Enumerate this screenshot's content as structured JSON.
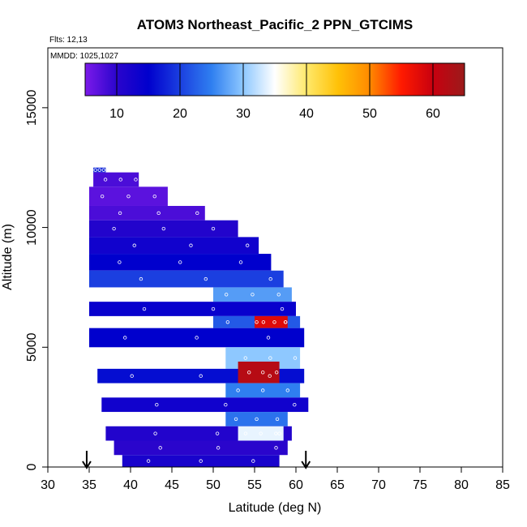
{
  "chart_data": {
    "type": "heatmap",
    "title": "ATOM3 Northeast_Pacific_2 PPN_GTCIMS",
    "flights_label": "Flts: 12,13",
    "dates_label": "MMDD: 1025,1027",
    "xlabel": "Latitude (deg N)",
    "ylabel": "Altitude (m)",
    "xlim": [
      30,
      85
    ],
    "ylim": [
      0,
      17500
    ],
    "xticks": [
      "30",
      "35",
      "40",
      "45",
      "50",
      "55",
      "60",
      "65",
      "70",
      "75",
      "80",
      "85"
    ],
    "yticks": [
      "0",
      "5000",
      "10000",
      "15000"
    ],
    "colorbar": {
      "range": [
        5,
        65
      ],
      "ticks": [
        "10",
        "20",
        "30",
        "40",
        "50",
        "60"
      ],
      "colors": [
        "#7c1aea",
        "#2a05cc",
        "#0000cd",
        "#1b3fe0",
        "#2f7ff0",
        "#8ec8ff",
        "#ffffff",
        "#ffe96b",
        "#ffc107",
        "#ff8a00",
        "#ff1a00",
        "#c8000f",
        "#9b1b1b"
      ]
    },
    "markers_latitude": [
      34.7,
      61.2
    ],
    "cells": [
      {
        "lat": [
          35.5,
          37.0
        ],
        "alt": [
          12300,
          12500
        ],
        "value": 18
      },
      {
        "lat": [
          35.5,
          41.0
        ],
        "alt": [
          11700,
          12300
        ],
        "value": 8
      },
      {
        "lat": [
          35.0,
          44.5
        ],
        "alt": [
          10900,
          11700
        ],
        "value": 7
      },
      {
        "lat": [
          35.0,
          49.0
        ],
        "alt": [
          10300,
          10900
        ],
        "value": 8
      },
      {
        "lat": [
          35.0,
          53.0
        ],
        "alt": [
          9600,
          10300
        ],
        "value": 11
      },
      {
        "lat": [
          35.0,
          55.5
        ],
        "alt": [
          8900,
          9600
        ],
        "value": 13
      },
      {
        "lat": [
          35.0,
          57.0
        ],
        "alt": [
          8200,
          8900
        ],
        "value": 15
      },
      {
        "lat": [
          35.0,
          58.5
        ],
        "alt": [
          7500,
          8200
        ],
        "value": 20
      },
      {
        "lat": [
          50.0,
          59.5
        ],
        "alt": [
          6900,
          7500
        ],
        "value": 27
      },
      {
        "lat": [
          35.0,
          60.0
        ],
        "alt": [
          6300,
          6900
        ],
        "value": 14
      },
      {
        "lat": [
          50.0,
          60.5
        ],
        "alt": [
          5800,
          6300
        ],
        "value": 22
      },
      {
        "lat": [
          55.0,
          59.0
        ],
        "alt": [
          5800,
          6300
        ],
        "value": 58
      },
      {
        "lat": [
          35.0,
          61.0
        ],
        "alt": [
          5000,
          5800
        ],
        "value": 15
      },
      {
        "lat": [
          51.5,
          60.5
        ],
        "alt": [
          4100,
          5000
        ],
        "value": 30
      },
      {
        "lat": [
          36.0,
          61.0
        ],
        "alt": [
          3500,
          4100
        ],
        "value": 16
      },
      {
        "lat": [
          53.0,
          58.0
        ],
        "alt": [
          3500,
          4400
        ],
        "value": 62
      },
      {
        "lat": [
          51.5,
          60.5
        ],
        "alt": [
          2900,
          3500
        ],
        "value": 25
      },
      {
        "lat": [
          36.5,
          61.5
        ],
        "alt": [
          2300,
          2900
        ],
        "value": 13
      },
      {
        "lat": [
          51.5,
          59.0
        ],
        "alt": [
          1700,
          2300
        ],
        "value": 24
      },
      {
        "lat": [
          37.0,
          59.5
        ],
        "alt": [
          1100,
          1700
        ],
        "value": 11
      },
      {
        "lat": [
          53.0,
          58.5
        ],
        "alt": [
          1100,
          1700
        ],
        "value": 34
      },
      {
        "lat": [
          38.0,
          59.0
        ],
        "alt": [
          500,
          1100
        ],
        "value": 10
      },
      {
        "lat": [
          39.0,
          58.0
        ],
        "alt": [
          0,
          500
        ],
        "value": 12
      }
    ]
  }
}
